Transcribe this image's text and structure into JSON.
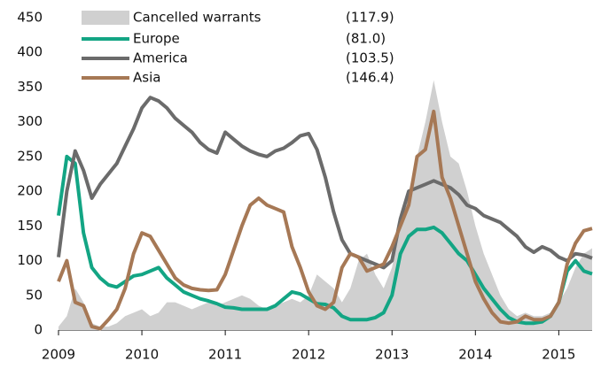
{
  "chart_data": {
    "type": "line",
    "x": [
      2009,
      2009.1,
      2009.2,
      2009.3,
      2009.4,
      2009.5,
      2009.6,
      2009.7,
      2009.8,
      2009.9,
      2010,
      2010.1,
      2010.2,
      2010.3,
      2010.4,
      2010.5,
      2010.6,
      2010.7,
      2010.8,
      2010.9,
      2011,
      2011.1,
      2011.2,
      2011.3,
      2011.4,
      2011.5,
      2011.6,
      2011.7,
      2011.8,
      2011.9,
      2012,
      2012.1,
      2012.2,
      2012.3,
      2012.4,
      2012.5,
      2012.6,
      2012.7,
      2012.8,
      2012.9,
      2013,
      2013.1,
      2013.2,
      2013.3,
      2013.4,
      2013.5,
      2013.6,
      2013.7,
      2013.8,
      2013.9,
      2014,
      2014.1,
      2014.2,
      2014.3,
      2014.4,
      2014.5,
      2014.6,
      2014.7,
      2014.8,
      2014.9,
      2015,
      2015.1,
      2015.2,
      2015.3,
      2015.4
    ],
    "series": [
      {
        "name": "Cancelled warrants",
        "type": "area",
        "color": "#d0d0d0",
        "value_label": "(117.9)",
        "values": [
          5,
          20,
          60,
          40,
          10,
          5,
          5,
          10,
          20,
          25,
          30,
          20,
          25,
          40,
          40,
          35,
          30,
          35,
          40,
          35,
          40,
          45,
          50,
          45,
          35,
          30,
          35,
          40,
          45,
          40,
          50,
          80,
          70,
          60,
          40,
          60,
          100,
          110,
          80,
          60,
          90,
          150,
          200,
          250,
          300,
          360,
          300,
          250,
          240,
          200,
          150,
          110,
          80,
          50,
          30,
          20,
          25,
          20,
          20,
          25,
          40,
          60,
          90,
          110,
          117.9
        ]
      },
      {
        "name": "Europe",
        "color": "#13a584",
        "value_label": "(81.0)",
        "values": [
          165,
          250,
          240,
          140,
          90,
          75,
          65,
          62,
          70,
          78,
          80,
          85,
          90,
          75,
          65,
          55,
          50,
          45,
          42,
          38,
          33,
          32,
          30,
          30,
          30,
          30,
          35,
          45,
          55,
          52,
          45,
          38,
          37,
          32,
          20,
          15,
          15,
          15,
          18,
          25,
          50,
          110,
          135,
          145,
          145,
          148,
          140,
          125,
          110,
          100,
          80,
          60,
          45,
          30,
          18,
          12,
          10,
          10,
          12,
          20,
          40,
          85,
          100,
          85,
          81
        ]
      },
      {
        "name": "America",
        "color": "#6b6b6b",
        "value_label": "(103.5)",
        "values": [
          105,
          200,
          258,
          230,
          190,
          210,
          225,
          240,
          265,
          290,
          320,
          335,
          330,
          320,
          305,
          295,
          285,
          270,
          260,
          255,
          285,
          275,
          265,
          258,
          253,
          250,
          258,
          262,
          270,
          280,
          283,
          260,
          220,
          170,
          130,
          110,
          105,
          100,
          95,
          90,
          100,
          160,
          200,
          205,
          210,
          215,
          210,
          205,
          195,
          180,
          175,
          165,
          160,
          155,
          145,
          135,
          120,
          112,
          120,
          115,
          105,
          100,
          110,
          108,
          103.5
        ]
      },
      {
        "name": "Asia",
        "color": "#a67855",
        "value_label": "(146.4)",
        "values": [
          70,
          100,
          40,
          35,
          5,
          2,
          15,
          30,
          60,
          110,
          140,
          135,
          115,
          95,
          75,
          65,
          60,
          58,
          57,
          58,
          80,
          115,
          150,
          180,
          190,
          180,
          175,
          170,
          120,
          90,
          55,
          35,
          30,
          40,
          90,
          110,
          105,
          85,
          90,
          95,
          120,
          150,
          180,
          250,
          260,
          315,
          220,
          190,
          150,
          110,
          70,
          45,
          25,
          12,
          10,
          12,
          20,
          15,
          15,
          20,
          40,
          95,
          125,
          143,
          146.4
        ]
      }
    ],
    "xlim": [
      2009,
      2015.4
    ],
    "xticks": [
      2009,
      2010,
      2011,
      2012,
      2013,
      2014,
      2015
    ],
    "ylim": [
      0,
      450
    ],
    "yticks": [
      0,
      50,
      100,
      150,
      200,
      250,
      300,
      350,
      400,
      450
    ]
  }
}
